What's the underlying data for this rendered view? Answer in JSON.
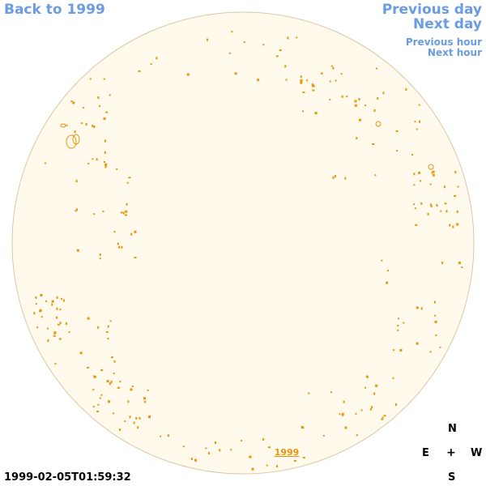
{
  "nav": {
    "back_label": "Back to 1999",
    "prev_day_label": "Previous day",
    "next_day_label": "Next day",
    "prev_hour_label": "Previous hour",
    "next_hour_label": "Next hour"
  },
  "disk": {
    "year_label": "1999",
    "fill_color": "#fffaeb",
    "border_color": "#d6c9a8",
    "spot_color": "#e8950f"
  },
  "timestamp": "1999-02-05T01:59:32",
  "compass": {
    "north": "N",
    "east": "E",
    "center": "+",
    "west": "W",
    "south": "S"
  }
}
